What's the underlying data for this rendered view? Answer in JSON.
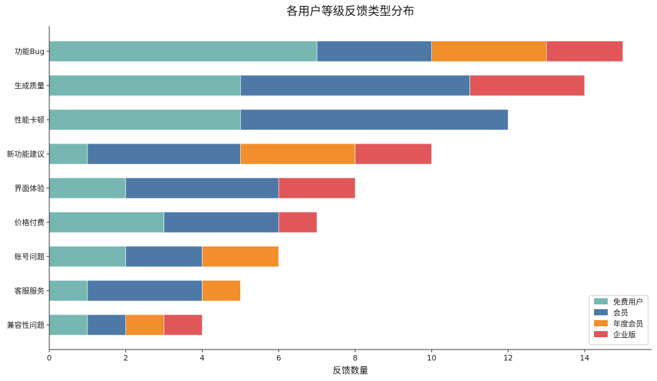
{
  "chart_data": {
    "type": "bar",
    "orientation": "horizontal",
    "stacked": true,
    "title": "各用户等级反馈类型分布",
    "xlabel": "反馈数量",
    "ylabel": "",
    "xlim": [
      0,
      15.75
    ],
    "xticks": [
      0,
      2,
      4,
      6,
      8,
      10,
      12,
      14
    ],
    "grid": false,
    "legend_position": "bottom-right",
    "categories": [
      "功能Bug",
      "生成质量",
      "性能卡顿",
      "新功能建议",
      "界面体验",
      "价格付费",
      "账号问题",
      "客服服务",
      "兼容性问题"
    ],
    "series": [
      {
        "name": "免费用户",
        "color": "#76b7b2",
        "values": [
          7,
          5,
          5,
          1,
          2,
          3,
          2,
          1,
          1
        ]
      },
      {
        "name": "会员",
        "color": "#4e79a7",
        "values": [
          3,
          6,
          7,
          4,
          4,
          3,
          2,
          3,
          1
        ]
      },
      {
        "name": "年度会员",
        "color": "#f28e2b",
        "values": [
          3,
          0,
          0,
          3,
          0,
          0,
          2,
          1,
          1
        ]
      },
      {
        "name": "企业版",
        "color": "#e15759",
        "values": [
          2,
          3,
          0,
          2,
          2,
          1,
          0,
          0,
          1
        ]
      }
    ]
  }
}
